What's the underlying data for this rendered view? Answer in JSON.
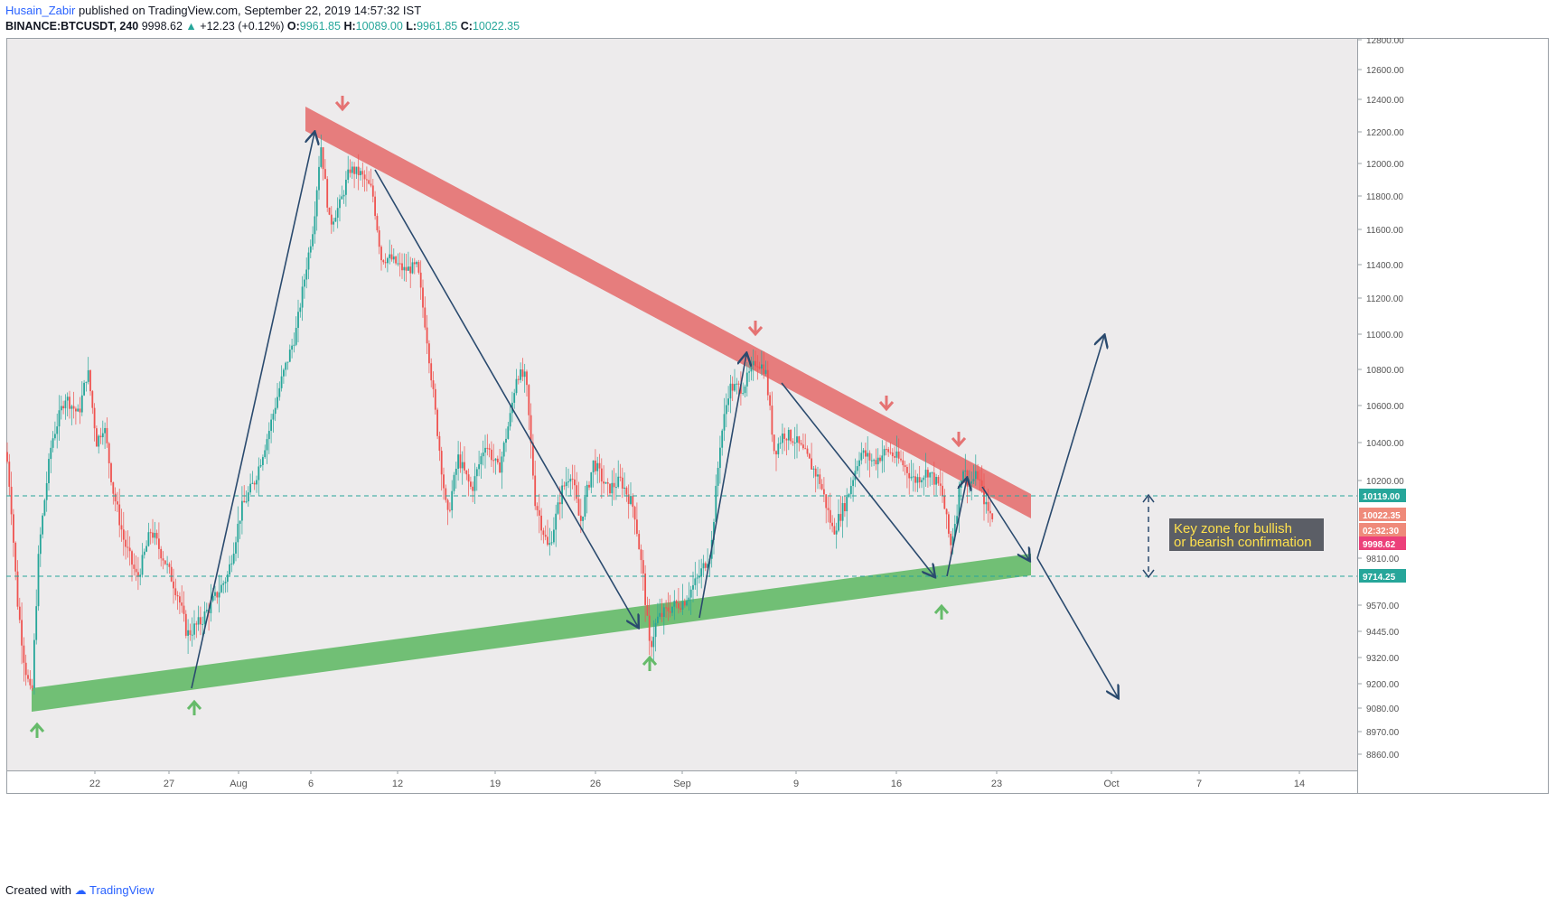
{
  "header": {
    "author": "Husain_Zabir",
    "published": "published on TradingView.com, September 22, 2019 14:57:32 IST",
    "symbol": "BINANCE:BTCUSDT, 240",
    "last": "9998.62",
    "change": "+12.23 (+0.12%)",
    "o_label": "O:",
    "o_value": "9961.85",
    "h_label": "H:",
    "h_value": "10089.00",
    "l_label": "L:",
    "l_value": "9961.85",
    "c_label": "C:",
    "c_value": "10022.35"
  },
  "footer": {
    "created_with": "Created with",
    "brand": "TradingView"
  },
  "colors": {
    "up": "#26a69a",
    "down": "#ef5350",
    "resistance_band": "#e57373",
    "support_band": "#66bb6a",
    "arrow_line": "#2a4a6e",
    "annotation_bg": "#5b5e66",
    "annotation_text": "#ffe14d",
    "plot_bg": "#edebec"
  },
  "chart_data": {
    "type": "candlestick",
    "symbol": "BINANCE:BTCUSDT",
    "timeframe": "240",
    "x_ticks": [
      "22",
      "27",
      "Aug",
      "6",
      "12",
      "19",
      "26",
      "Sep",
      "9",
      "16",
      "23",
      "Oct",
      "7",
      "14"
    ],
    "y_ticks": [
      "12800.00",
      "12600.00",
      "12400.00",
      "12200.00",
      "12000.00",
      "11800.00",
      "11600.00",
      "11400.00",
      "11200.00",
      "11000.00",
      "10800.00",
      "10600.00",
      "10400.00",
      "10200.00",
      "9810.00",
      "9570.00",
      "9445.00",
      "9320.00",
      "9200.00",
      "9080.00",
      "8970.00",
      "8860.00"
    ],
    "price_labels": [
      {
        "text": "10119.00",
        "price": 10119,
        "color": "#26a69a",
        "line": true
      },
      {
        "text": "10022.35",
        "price": 10022.35,
        "color": "#ef8a7a",
        "line": false
      },
      {
        "text": "02:32:30",
        "price": 9935,
        "color": "#ef8a7a",
        "line": false
      },
      {
        "text": "9998.62",
        "price": 9880,
        "color": "#ec407a",
        "line": false
      },
      {
        "text": "9714.25",
        "price": 9714.25,
        "color": "#26a69a",
        "line": true
      }
    ],
    "price_path": [
      [
        0,
        10350
      ],
      [
        5,
        10100
      ],
      [
        12,
        9600
      ],
      [
        20,
        9300
      ],
      [
        28,
        9120
      ],
      [
        36,
        9850
      ],
      [
        50,
        10400
      ],
      [
        65,
        10650
      ],
      [
        80,
        10550
      ],
      [
        90,
        10800
      ],
      [
        100,
        10400
      ],
      [
        108,
        10500
      ],
      [
        118,
        10150
      ],
      [
        130,
        9900
      ],
      [
        145,
        9700
      ],
      [
        160,
        9950
      ],
      [
        175,
        9800
      ],
      [
        190,
        9620
      ],
      [
        200,
        9430
      ],
      [
        215,
        9490
      ],
      [
        230,
        9600
      ],
      [
        245,
        9720
      ],
      [
        260,
        10050
      ],
      [
        275,
        10200
      ],
      [
        290,
        10450
      ],
      [
        305,
        10750
      ],
      [
        320,
        11000
      ],
      [
        332,
        11400
      ],
      [
        340,
        11650
      ],
      [
        348,
        12130
      ],
      [
        358,
        11650
      ],
      [
        370,
        11780
      ],
      [
        380,
        11980
      ],
      [
        392,
        11950
      ],
      [
        405,
        11850
      ],
      [
        415,
        11450
      ],
      [
        425,
        11450
      ],
      [
        440,
        11380
      ],
      [
        455,
        11400
      ],
      [
        465,
        11000
      ],
      [
        475,
        10550
      ],
      [
        488,
        10000
      ],
      [
        500,
        10320
      ],
      [
        515,
        10150
      ],
      [
        530,
        10400
      ],
      [
        545,
        10250
      ],
      [
        558,
        10550
      ],
      [
        565,
        10780
      ],
      [
        575,
        10750
      ],
      [
        585,
        10100
      ],
      [
        600,
        9850
      ],
      [
        615,
        10150
      ],
      [
        625,
        10250
      ],
      [
        635,
        9980
      ],
      [
        650,
        10300
      ],
      [
        665,
        10150
      ],
      [
        680,
        10200
      ],
      [
        695,
        10050
      ],
      [
        705,
        9700
      ],
      [
        712,
        9360
      ],
      [
        720,
        9500
      ],
      [
        735,
        9560
      ],
      [
        750,
        9590
      ],
      [
        765,
        9700
      ],
      [
        780,
        9850
      ],
      [
        790,
        10400
      ],
      [
        800,
        10700
      ],
      [
        815,
        10700
      ],
      [
        830,
        10850
      ],
      [
        840,
        10800
      ],
      [
        850,
        10350
      ],
      [
        860,
        10450
      ],
      [
        872,
        10420
      ],
      [
        885,
        10330
      ],
      [
        900,
        10200
      ],
      [
        915,
        9940
      ],
      [
        930,
        10100
      ],
      [
        945,
        10350
      ],
      [
        960,
        10300
      ],
      [
        975,
        10360
      ],
      [
        990,
        10300
      ],
      [
        1005,
        10200
      ],
      [
        1020,
        10250
      ],
      [
        1035,
        10150
      ],
      [
        1045,
        9870
      ],
      [
        1052,
        10050
      ],
      [
        1058,
        10280
      ],
      [
        1065,
        10180
      ],
      [
        1075,
        10230
      ],
      [
        1085,
        10050
      ],
      [
        1095,
        10000
      ]
    ],
    "drawings": {
      "resistance_trendline": "red band from late July high descending to late September",
      "support_trendline": "green band from mid July low ascending to late September",
      "breakout_scenarios": [
        "up",
        "down"
      ],
      "annotation": "Key zone for bullish or bearish confirmation"
    }
  },
  "annotation": {
    "text": "Key zone for bullish or bearish confirmation"
  }
}
